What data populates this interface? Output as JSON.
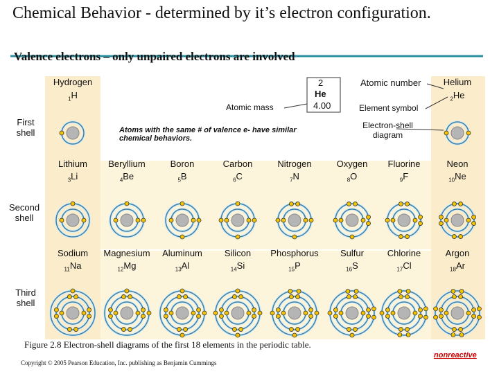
{
  "header": {
    "title": "Chemical Behavior - determined by it’s electron configuration.",
    "subtitle": "Valence electrons – only unpaired electrons are involved"
  },
  "legend": {
    "atomic_number": "2",
    "symbol": "He",
    "mass": "4.00",
    "atomic_number_label": "Atomic number",
    "atomic_mass_label": "Atomic mass",
    "element_symbol_label": "Element symbol",
    "diagram_label": "Electron-shell diagram"
  },
  "note": "Atoms with the same # of valence e- have similar chemical behaviors.",
  "shells": [
    "First shell",
    "Second shell",
    "Third shell"
  ],
  "elements": [
    {
      "name": "Hydrogen",
      "number": 1,
      "symbol": "H"
    },
    {
      "name": "Helium",
      "number": 2,
      "symbol": "He"
    },
    {
      "name": "Lithium",
      "number": 3,
      "symbol": "Li"
    },
    {
      "name": "Beryllium",
      "number": 4,
      "symbol": "Be"
    },
    {
      "name": "Boron",
      "number": 5,
      "symbol": "B"
    },
    {
      "name": "Carbon",
      "number": 6,
      "symbol": "C"
    },
    {
      "name": "Nitrogen",
      "number": 7,
      "symbol": "N"
    },
    {
      "name": "Oxygen",
      "number": 8,
      "symbol": "O"
    },
    {
      "name": "Fluorine",
      "number": 9,
      "symbol": "F"
    },
    {
      "name": "Neon",
      "number": 10,
      "symbol": "Ne"
    },
    {
      "name": "Sodium",
      "number": 11,
      "symbol": "Na"
    },
    {
      "name": "Magnesium",
      "number": 12,
      "symbol": "Mg"
    },
    {
      "name": "Aluminum",
      "number": 13,
      "symbol": "Al"
    },
    {
      "name": "Silicon",
      "number": 14,
      "symbol": "Si"
    },
    {
      "name": "Phosphorus",
      "number": 15,
      "symbol": "P"
    },
    {
      "name": "Sulfur",
      "number": 16,
      "symbol": "S"
    },
    {
      "name": "Chlorine",
      "number": 17,
      "symbol": "Cl"
    },
    {
      "name": "Argon",
      "number": 18,
      "symbol": "Ar"
    }
  ],
  "caption": "Figure 2.8 Electron-shell diagrams of the first 18 elements in the periodic table.",
  "copyright": "Copyright © 2005 Pearson Education, Inc. publishing as Benjamin Cummings",
  "tag": "nonreactive"
}
